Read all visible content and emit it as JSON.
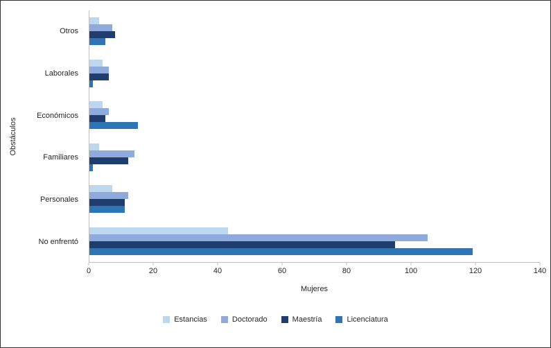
{
  "figure": {
    "background": "#ffffff",
    "border_color": "#333333",
    "axis_line_color": "#bfbfbf",
    "text_color": "#262626"
  },
  "chart_data": {
    "type": "bar",
    "orientation": "horizontal",
    "title": "",
    "xlabel": "Mujeres",
    "ylabel": "Obstáculos",
    "xlim": [
      0,
      140
    ],
    "xticks": [
      0,
      20,
      40,
      60,
      80,
      100,
      120,
      140
    ],
    "grid": false,
    "legend_position": "bottom",
    "categories": [
      "Otros",
      "Laborales",
      "Económicos",
      "Familiares",
      "Personales",
      "No enfrentó"
    ],
    "series": [
      {
        "name": "Estancias",
        "color": "#bdd7ee",
        "values": [
          3,
          4,
          4,
          3,
          7,
          43
        ]
      },
      {
        "name": "Doctorado",
        "color": "#8faadc",
        "values": [
          7,
          6,
          6,
          14,
          12,
          105
        ]
      },
      {
        "name": "Maestría",
        "color": "#1f3d6d",
        "values": [
          8,
          6,
          5,
          12,
          11,
          95
        ]
      },
      {
        "name": "Licenciatura",
        "color": "#2e75b6",
        "values": [
          5,
          1,
          15,
          1,
          11,
          119
        ]
      }
    ]
  }
}
